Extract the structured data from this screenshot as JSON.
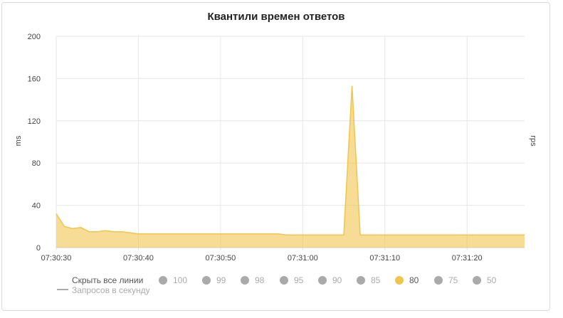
{
  "chart_data": {
    "type": "area",
    "title": "Квантили времен ответов",
    "ylabel": "ms",
    "ylabel_right": "rps",
    "ylim": [
      0,
      200
    ],
    "yticks": [
      "0",
      "40",
      "80",
      "120",
      "160",
      "200"
    ],
    "xlim": [
      "07:30:30",
      "07:31:27"
    ],
    "xticks": [
      "07:30:30",
      "07:30:40",
      "07:30:50",
      "07:31:00",
      "07:31:10",
      "07:31:20"
    ],
    "grid": true,
    "series": [
      {
        "name": "80",
        "color": "#f0c54c",
        "x": [
          "07:30:30",
          "07:30:31",
          "07:30:32",
          "07:30:33",
          "07:30:34",
          "07:30:35",
          "07:30:36",
          "07:30:37",
          "07:30:38",
          "07:30:39",
          "07:30:40",
          "07:30:41",
          "07:30:42",
          "07:30:43",
          "07:30:44",
          "07:30:45",
          "07:30:46",
          "07:30:47",
          "07:30:48",
          "07:30:49",
          "07:30:50",
          "07:30:51",
          "07:30:52",
          "07:30:53",
          "07:30:54",
          "07:30:55",
          "07:30:56",
          "07:30:57",
          "07:30:58",
          "07:30:59",
          "07:31:00",
          "07:31:01",
          "07:31:02",
          "07:31:03",
          "07:31:04",
          "07:31:05",
          "07:31:06",
          "07:31:07",
          "07:31:08",
          "07:31:09",
          "07:31:10",
          "07:31:11",
          "07:31:12",
          "07:31:13",
          "07:31:14",
          "07:31:15",
          "07:31:16",
          "07:31:17",
          "07:31:18",
          "07:31:19",
          "07:31:20",
          "07:31:21",
          "07:31:22",
          "07:31:23",
          "07:31:24",
          "07:31:25",
          "07:31:26",
          "07:31:27"
        ],
        "values": [
          32,
          20,
          18,
          19,
          15,
          15,
          16,
          15,
          15,
          14,
          13,
          13,
          13,
          13,
          13,
          13,
          13,
          13,
          13,
          13,
          13,
          13,
          13,
          13,
          13,
          13,
          13,
          13,
          12,
          12,
          12,
          12,
          12,
          12,
          12,
          12,
          153,
          12,
          12,
          12,
          12,
          12,
          12,
          12,
          12,
          12,
          12,
          12,
          12,
          12,
          12,
          12,
          12,
          12,
          12,
          12,
          12,
          12
        ]
      }
    ]
  },
  "legend": {
    "hide_all": "Скрыть все линии",
    "items": [
      {
        "label": "100",
        "color": "#aaaaaa",
        "active": false
      },
      {
        "label": "99",
        "color": "#aaaaaa",
        "active": false
      },
      {
        "label": "98",
        "color": "#aaaaaa",
        "active": false
      },
      {
        "label": "95",
        "color": "#aaaaaa",
        "active": false
      },
      {
        "label": "90",
        "color": "#aaaaaa",
        "active": false
      },
      {
        "label": "85",
        "color": "#aaaaaa",
        "active": false
      },
      {
        "label": "80",
        "color": "#f0c54c",
        "active": true
      },
      {
        "label": "75",
        "color": "#aaaaaa",
        "active": false
      },
      {
        "label": "50",
        "color": "#aaaaaa",
        "active": false
      }
    ],
    "rps_label": "Запросов в секунду"
  }
}
